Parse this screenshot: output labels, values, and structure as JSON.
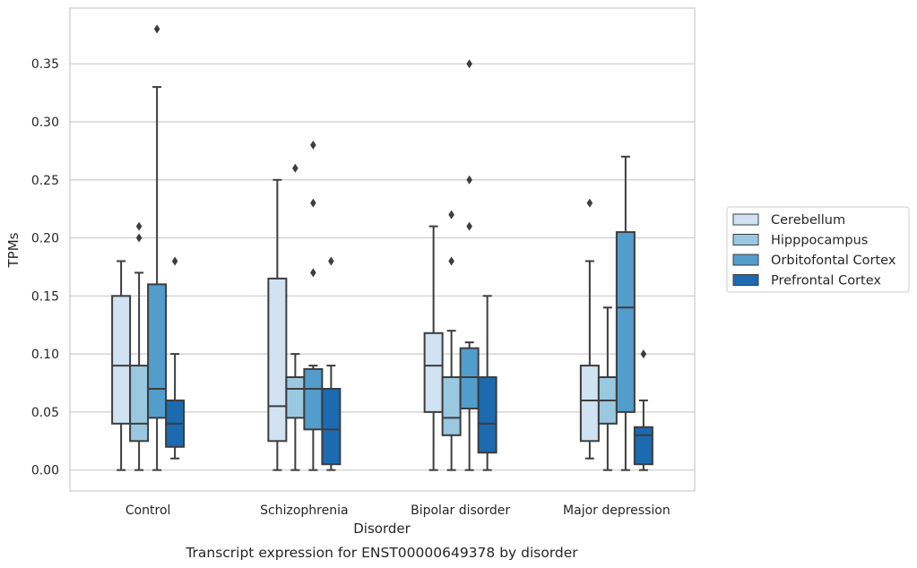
{
  "chart_data": {
    "type": "box",
    "title": "",
    "caption": "Transcript expression for ENST00000649378 by disorder",
    "xlabel": "Disorder",
    "ylabel": "TPMs",
    "ylim": [
      -0.018,
      0.398
    ],
    "yticks": [
      "0.00",
      "0.05",
      "0.10",
      "0.15",
      "0.20",
      "0.25",
      "0.30",
      "0.35"
    ],
    "grid": "horizontal",
    "legend_position": "right",
    "categories": [
      "Control",
      "Schizophrenia",
      "Bipolar disorder",
      "Major depression"
    ],
    "series": [
      {
        "name": "Cerebellum",
        "color": "#d1e2f2",
        "boxes": [
          {
            "whisker_low": 0.0,
            "q1": 0.04,
            "median": 0.09,
            "q3": 0.15,
            "whisker_high": 0.18,
            "outliers": []
          },
          {
            "whisker_low": 0.0,
            "q1": 0.025,
            "median": 0.055,
            "q3": 0.165,
            "whisker_high": 0.25,
            "outliers": []
          },
          {
            "whisker_low": 0.0,
            "q1": 0.05,
            "median": 0.09,
            "q3": 0.118,
            "whisker_high": 0.21,
            "outliers": []
          },
          {
            "whisker_low": 0.01,
            "q1": 0.025,
            "median": 0.06,
            "q3": 0.09,
            "whisker_high": 0.18,
            "outliers": [
              0.23
            ]
          }
        ]
      },
      {
        "name": "Hipppocampus",
        "color": "#9ac8e0",
        "boxes": [
          {
            "whisker_low": 0.0,
            "q1": 0.025,
            "median": 0.04,
            "q3": 0.09,
            "whisker_high": 0.17,
            "outliers": [
              0.2,
              0.21
            ]
          },
          {
            "whisker_low": 0.0,
            "q1": 0.045,
            "median": 0.07,
            "q3": 0.08,
            "whisker_high": 0.1,
            "outliers": [
              0.26
            ]
          },
          {
            "whisker_low": 0.0,
            "q1": 0.03,
            "median": 0.045,
            "q3": 0.08,
            "whisker_high": 0.12,
            "outliers": [
              0.18,
              0.22
            ]
          },
          {
            "whisker_low": 0.0,
            "q1": 0.04,
            "median": 0.06,
            "q3": 0.08,
            "whisker_high": 0.14,
            "outliers": []
          }
        ]
      },
      {
        "name": "Orbitofontal Cortex",
        "color": "#529dcc",
        "boxes": [
          {
            "whisker_low": 0.0,
            "q1": 0.045,
            "median": 0.07,
            "q3": 0.16,
            "whisker_high": 0.33,
            "outliers": [
              0.38
            ]
          },
          {
            "whisker_low": 0.0,
            "q1": 0.035,
            "median": 0.07,
            "q3": 0.087,
            "whisker_high": 0.09,
            "outliers": [
              0.17,
              0.23,
              0.28
            ]
          },
          {
            "whisker_low": 0.0,
            "q1": 0.053,
            "median": 0.08,
            "q3": 0.105,
            "whisker_high": 0.11,
            "outliers": [
              0.21,
              0.25,
              0.35
            ]
          },
          {
            "whisker_low": 0.0,
            "q1": 0.05,
            "median": 0.14,
            "q3": 0.205,
            "whisker_high": 0.27,
            "outliers": []
          }
        ]
      },
      {
        "name": "Prefrontal Cortex",
        "color": "#1c6aaf",
        "boxes": [
          {
            "whisker_low": 0.01,
            "q1": 0.02,
            "median": 0.04,
            "q3": 0.06,
            "whisker_high": 0.1,
            "outliers": [
              0.18
            ]
          },
          {
            "whisker_low": 0.0,
            "q1": 0.005,
            "median": 0.035,
            "q3": 0.07,
            "whisker_high": 0.09,
            "outliers": [
              0.18
            ]
          },
          {
            "whisker_low": 0.0,
            "q1": 0.015,
            "median": 0.04,
            "q3": 0.08,
            "whisker_high": 0.15,
            "outliers": []
          },
          {
            "whisker_low": 0.0,
            "q1": 0.005,
            "median": 0.03,
            "q3": 0.037,
            "whisker_high": 0.06,
            "outliers": [
              0.1
            ]
          }
        ]
      }
    ]
  }
}
